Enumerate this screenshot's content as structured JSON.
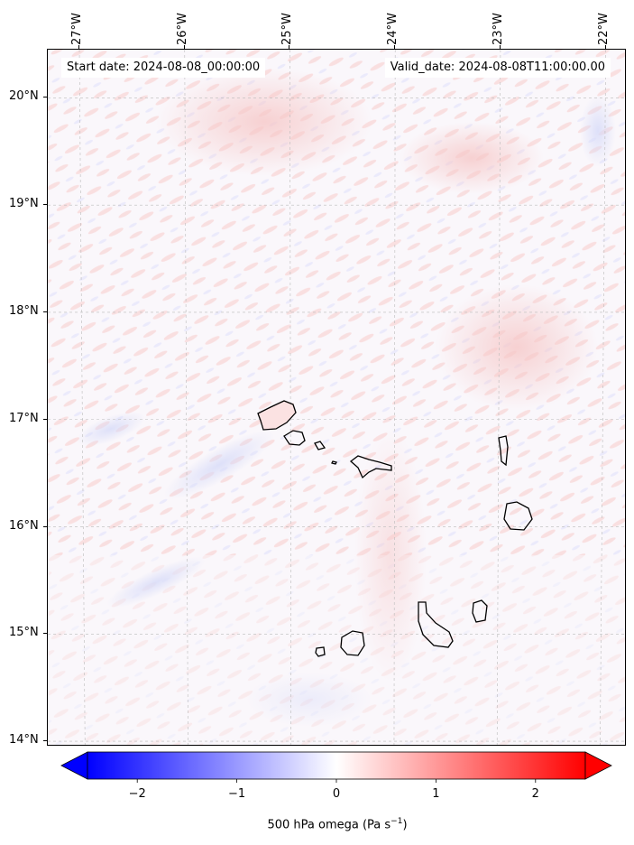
{
  "map": {
    "start_label": "Start date: 2024-08-08_00:00:00",
    "valid_label": "Valid_date: 2024-08-08T11:00:00.00",
    "longitude_ticks": [
      "27°W",
      "26°W",
      "25°W",
      "24°W",
      "23°W",
      "22°W"
    ],
    "latitude_ticks": [
      "20°N",
      "19°N",
      "18°N",
      "17°N",
      "16°N",
      "15°N",
      "14°N"
    ],
    "lon_range": [
      -27.3,
      -21.8
    ],
    "lat_range": [
      13.95,
      20.45
    ],
    "field": "500 hPa omega",
    "gridlines": true,
    "colormap": "bwr",
    "colors": {
      "negative": "#0000ff",
      "zero": "#ffffff",
      "positive": "#ff0000",
      "coastline": "#000000",
      "grid": "#bbbbbb"
    }
  },
  "colorbar": {
    "ticks": [
      "−2",
      "−1",
      "0",
      "1",
      "2"
    ],
    "tick_values": [
      -2,
      -1,
      0,
      1,
      2
    ],
    "range": [
      -2.5,
      2.5
    ],
    "extend": "both",
    "label_text": "500 hPa omega (Pa s",
    "label_exponent": "−1",
    "label_close": ")"
  }
}
